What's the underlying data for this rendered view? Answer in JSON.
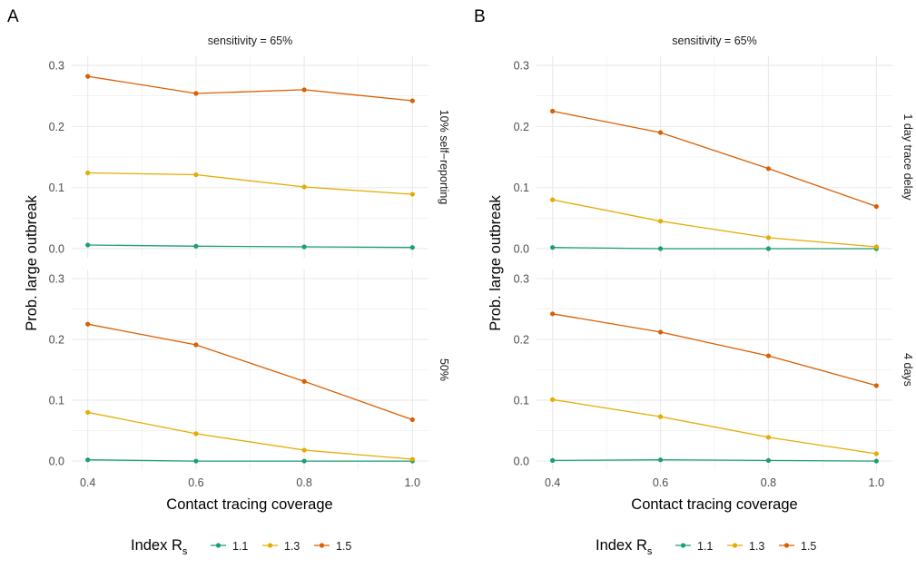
{
  "legend_title": "Index R",
  "legend_title_sub": "s",
  "chart_data": [
    {
      "type": "line",
      "panel_label": "A",
      "column_strip": "sensitivity = 65%",
      "xlabel": "Contact tracing coverage",
      "ylabel": "Prob. large outbreak",
      "x": [
        0.4,
        0.6,
        0.8,
        1.0
      ],
      "x_ticks": [
        "0.4",
        "0.6",
        "0.8",
        "1.0"
      ],
      "y_ticks": [
        "0.0",
        "0.1",
        "0.2",
        "0.3"
      ],
      "ylim": [
        0,
        0.3
      ],
      "xlim": [
        0.4,
        1.0
      ],
      "grid": true,
      "legend_position": "bottom",
      "facets": [
        {
          "row_strip": "10% self−reporting",
          "series": [
            {
              "name": "1.1",
              "color": "#1b9e77",
              "values": [
                0.006,
                0.004,
                0.003,
                0.002
              ]
            },
            {
              "name": "1.3",
              "color": "#e6ab02",
              "values": [
                0.124,
                0.121,
                0.101,
                0.089
              ]
            },
            {
              "name": "1.5",
              "color": "#d95f02",
              "values": [
                0.282,
                0.254,
                0.26,
                0.242
              ]
            }
          ]
        },
        {
          "row_strip": "50%",
          "series": [
            {
              "name": "1.1",
              "color": "#1b9e77",
              "values": [
                0.002,
                0.0,
                0.0,
                0.0
              ]
            },
            {
              "name": "1.3",
              "color": "#e6ab02",
              "values": [
                0.08,
                0.045,
                0.018,
                0.003
              ]
            },
            {
              "name": "1.5",
              "color": "#d95f02",
              "values": [
                0.225,
                0.191,
                0.131,
                0.068
              ]
            }
          ]
        }
      ]
    },
    {
      "type": "line",
      "panel_label": "B",
      "column_strip": "sensitivity = 65%",
      "xlabel": "Contact tracing coverage",
      "ylabel": "Prob. large outbreak",
      "x": [
        0.4,
        0.6,
        0.8,
        1.0
      ],
      "x_ticks": [
        "0.4",
        "0.6",
        "0.8",
        "1.0"
      ],
      "y_ticks": [
        "0.0",
        "0.1",
        "0.2",
        "0.3"
      ],
      "ylim": [
        0,
        0.3
      ],
      "xlim": [
        0.4,
        1.0
      ],
      "grid": true,
      "legend_position": "bottom",
      "facets": [
        {
          "row_strip": "1 day trace delay",
          "series": [
            {
              "name": "1.1",
              "color": "#1b9e77",
              "values": [
                0.002,
                0.0,
                0.0,
                0.0
              ]
            },
            {
              "name": "1.3",
              "color": "#e6ab02",
              "values": [
                0.08,
                0.045,
                0.018,
                0.003
              ]
            },
            {
              "name": "1.5",
              "color": "#d95f02",
              "values": [
                0.225,
                0.19,
                0.131,
                0.069
              ]
            }
          ]
        },
        {
          "row_strip": "4 days",
          "series": [
            {
              "name": "1.1",
              "color": "#1b9e77",
              "values": [
                0.001,
                0.002,
                0.001,
                0.0
              ]
            },
            {
              "name": "1.3",
              "color": "#e6ab02",
              "values": [
                0.101,
                0.073,
                0.039,
                0.012
              ]
            },
            {
              "name": "1.5",
              "color": "#d95f02",
              "values": [
                0.242,
                0.212,
                0.173,
                0.124
              ]
            }
          ]
        }
      ]
    }
  ]
}
